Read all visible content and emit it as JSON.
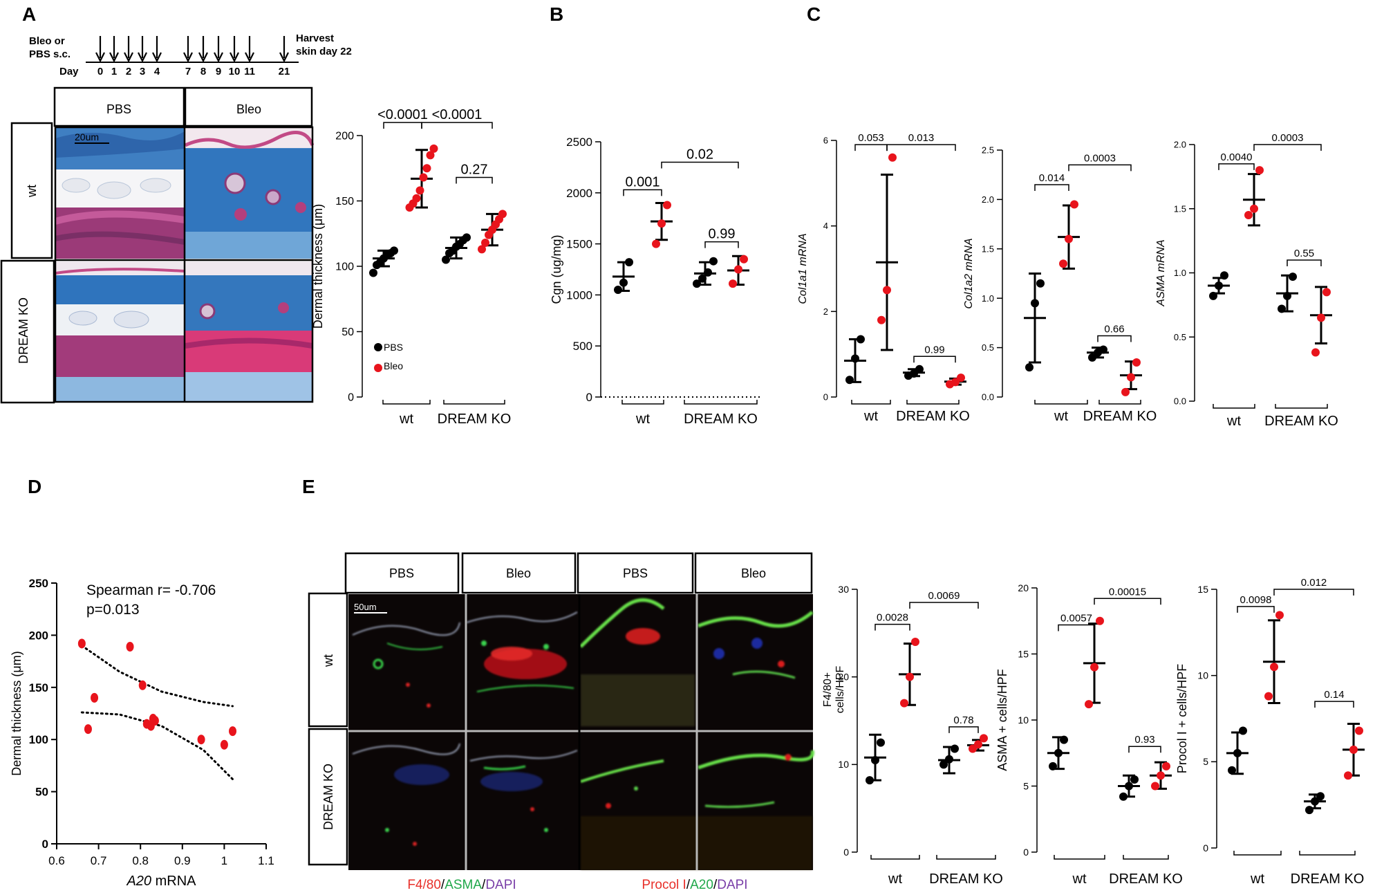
{
  "panel_letters": [
    "A",
    "B",
    "C",
    "D",
    "E"
  ],
  "timeline": {
    "treatment_label_line1": "Bleo or",
    "treatment_label_line2": "PBS s.c.",
    "day_label": "Day",
    "days": [
      "0",
      "1",
      "2",
      "3",
      "4",
      "7",
      "8",
      "9",
      "10",
      "11",
      "21"
    ],
    "harvest_label_line1": "Harvest",
    "harvest_label_line2": "skin day 22"
  },
  "histology_a": {
    "columns": [
      "PBS",
      "Bleo"
    ],
    "rows": [
      "wt",
      "DREAM KO"
    ],
    "scale_bar": "20um"
  },
  "histology_e": {
    "columns": [
      "PBS",
      "Bleo",
      "PBS",
      "Bleo"
    ],
    "rows": [
      "wt",
      "DREAM KO"
    ],
    "scale_bar": "50um",
    "stain_left": [
      "F4/80",
      "/",
      "ASMA",
      "/",
      "DAPI"
    ],
    "stain_right": [
      "Procol I",
      "/",
      "A20",
      "/",
      "DAPI"
    ],
    "stain_colors": [
      "#e8302a",
      "#000000",
      "#20a84a",
      "#000000",
      "#7a3fa8"
    ]
  },
  "colors": {
    "pbs": "#000000",
    "bleo": "#e8141c",
    "axis": "#000000"
  },
  "chart_data": [
    {
      "id": "A-dermal",
      "type": "scatter",
      "ylabel": "Dermal thickness (μm)",
      "yticks": [
        0,
        50,
        100,
        150,
        200
      ],
      "ylim": [
        0,
        200
      ],
      "groups": [
        "wt",
        "DREAM KO"
      ],
      "legend": [
        "PBS",
        "Bleo"
      ],
      "series": [
        {
          "name": "PBS",
          "group": "wt",
          "points": [
            95,
            101,
            103,
            106,
            109,
            110,
            112
          ],
          "mean": 106,
          "sd": 6
        },
        {
          "name": "Bleo",
          "group": "wt",
          "points": [
            145,
            148,
            152,
            158,
            168,
            175,
            185,
            190
          ],
          "mean": 167,
          "sd": 22
        },
        {
          "name": "PBS",
          "group": "DREAM KO",
          "points": [
            105,
            110,
            112,
            115,
            117,
            120,
            122
          ],
          "mean": 114,
          "sd": 8
        },
        {
          "name": "Bleo",
          "group": "DREAM KO",
          "points": [
            113,
            118,
            124,
            128,
            132,
            136,
            140
          ],
          "mean": 128,
          "sd": 12
        }
      ],
      "pvalues": [
        {
          "text": "<0.0001",
          "from": 0,
          "to": 1,
          "y": 210
        },
        {
          "text": "<0.0001",
          "from": 1,
          "to": 3,
          "y": 210
        },
        {
          "text": "0.27",
          "from": 2,
          "to": 3,
          "y": 168
        }
      ]
    },
    {
      "id": "B-cgn",
      "type": "scatter",
      "ylabel": "Cgn (ug/mg)",
      "yticks": [
        0,
        500,
        1000,
        1500,
        2000,
        2500
      ],
      "ylim": [
        0,
        2500
      ],
      "groups": [
        "wt",
        "DREAM KO"
      ],
      "series": [
        {
          "name": "PBS",
          "group": "wt",
          "points": [
            1050,
            1120,
            1320
          ],
          "mean": 1180,
          "sd": 140
        },
        {
          "name": "Bleo",
          "group": "wt",
          "points": [
            1500,
            1700,
            1880
          ],
          "mean": 1720,
          "sd": 180
        },
        {
          "name": "PBS",
          "group": "DREAM KO",
          "points": [
            1110,
            1160,
            1220,
            1330
          ],
          "mean": 1210,
          "sd": 110
        },
        {
          "name": "Bleo",
          "group": "DREAM KO",
          "points": [
            1110,
            1250,
            1350
          ],
          "mean": 1240,
          "sd": 140
        }
      ],
      "pvalues": [
        {
          "text": "0.001",
          "from": 0,
          "to": 1,
          "y": 2030
        },
        {
          "text": "0.02",
          "from": 1,
          "to": 3,
          "y": 2300
        },
        {
          "text": "0.99",
          "from": 2,
          "to": 3,
          "y": 1520
        }
      ]
    },
    {
      "id": "C-col1a1",
      "type": "scatter",
      "ylabel": "Col1a1 mRNA",
      "yticks": [
        0,
        2,
        4,
        6
      ],
      "ylim": [
        0,
        6
      ],
      "groups": [
        "wt",
        "DREAM KO"
      ],
      "series": [
        {
          "name": "PBS",
          "group": "wt",
          "points": [
            0.4,
            0.9,
            1.35
          ],
          "mean": 0.85,
          "sd": 0.5
        },
        {
          "name": "Bleo",
          "group": "wt",
          "points": [
            1.8,
            2.5,
            5.6
          ],
          "mean": 3.15,
          "sd": 2.05
        },
        {
          "name": "PBS",
          "group": "DREAM KO",
          "points": [
            0.5,
            0.55,
            0.65
          ],
          "mean": 0.57,
          "sd": 0.08
        },
        {
          "name": "Bleo",
          "group": "DREAM KO",
          "points": [
            0.3,
            0.35,
            0.45
          ],
          "mean": 0.36,
          "sd": 0.07
        }
      ],
      "pvalues": [
        {
          "text": "0.053",
          "from": 0,
          "to": 1,
          "y": 5.9
        },
        {
          "text": "0.013",
          "from": 1,
          "to": 3,
          "y": 5.9
        },
        {
          "text": "0.99",
          "from": 2,
          "to": 3,
          "y": 0.95
        }
      ]
    },
    {
      "id": "C-col1a2",
      "type": "scatter",
      "ylabel": "Col1a2 mRNA",
      "yticks": [
        "0.0",
        "0.5",
        "1.0",
        "1.5",
        "2.0",
        "2.5"
      ],
      "ylim": [
        0,
        2.5
      ],
      "groups": [
        "wt",
        "DREAM KO"
      ],
      "series": [
        {
          "name": "PBS",
          "group": "wt",
          "points": [
            0.3,
            0.95,
            1.15
          ],
          "mean": 0.8,
          "sd": 0.45
        },
        {
          "name": "Bleo",
          "group": "wt",
          "points": [
            1.35,
            1.6,
            1.95
          ],
          "mean": 1.62,
          "sd": 0.32
        },
        {
          "name": "PBS",
          "group": "DREAM KO",
          "points": [
            0.4,
            0.45,
            0.48
          ],
          "mean": 0.45,
          "sd": 0.05
        },
        {
          "name": "Bleo",
          "group": "DREAM KO",
          "points": [
            0.05,
            0.2,
            0.35
          ],
          "mean": 0.22,
          "sd": 0.14
        }
      ],
      "pvalues": [
        {
          "text": "0.014",
          "from": 0,
          "to": 1,
          "y": 2.15
        },
        {
          "text": "0.0003",
          "from": 1,
          "to": 3,
          "y": 2.35
        },
        {
          "text": "0.66",
          "from": 2,
          "to": 3,
          "y": 0.62
        }
      ]
    },
    {
      "id": "C-asma",
      "type": "scatter",
      "ylabel": "ASMA mRNA",
      "yticks": [
        "0.0",
        "0.5",
        "1.0",
        "1.5",
        "2.0"
      ],
      "ylim": [
        0,
        2
      ],
      "groups": [
        "wt",
        "DREAM KO"
      ],
      "series": [
        {
          "name": "PBS",
          "group": "wt",
          "points": [
            0.82,
            0.9,
            0.98
          ],
          "mean": 0.9,
          "sd": 0.06
        },
        {
          "name": "Bleo",
          "group": "wt",
          "points": [
            1.45,
            1.5,
            1.8
          ],
          "mean": 1.57,
          "sd": 0.2
        },
        {
          "name": "PBS",
          "group": "DREAM KO",
          "points": [
            0.72,
            0.82,
            0.97
          ],
          "mean": 0.84,
          "sd": 0.14
        },
        {
          "name": "Bleo",
          "group": "DREAM KO",
          "points": [
            0.38,
            0.65,
            0.85
          ],
          "mean": 0.67,
          "sd": 0.22
        }
      ],
      "pvalues": [
        {
          "text": "0.0040",
          "from": 0,
          "to": 1,
          "y": 1.85
        },
        {
          "text": "0.0003",
          "from": 1,
          "to": 3,
          "y": 2.0
        },
        {
          "text": "0.55",
          "from": 2,
          "to": 3,
          "y": 1.1
        }
      ]
    },
    {
      "id": "D-corr",
      "type": "scatter",
      "xlabel_italic": "A20",
      "xlabel_rest": " mRNA",
      "ylabel": "Dermal thickness (μm)",
      "xticks": [
        "0.6",
        "0.7",
        "0.8",
        "0.9",
        "1",
        "1.1"
      ],
      "xlim": [
        0.6,
        1.1
      ],
      "yticks": [
        0,
        50,
        100,
        150,
        200,
        250
      ],
      "ylim": [
        0,
        250
      ],
      "annotation_1": "Spearman r= -0.706",
      "annotation_2": "p=0.013",
      "points": [
        [
          0.66,
          192
        ],
        [
          0.675,
          110
        ],
        [
          0.69,
          140
        ],
        [
          0.775,
          189
        ],
        [
          0.805,
          152
        ],
        [
          0.815,
          115
        ],
        [
          0.825,
          113
        ],
        [
          0.83,
          120
        ],
        [
          0.835,
          118
        ],
        [
          0.945,
          100
        ],
        [
          1.0,
          95
        ],
        [
          1.02,
          108
        ]
      ],
      "ci_upper": [
        [
          0.66,
          190
        ],
        [
          0.75,
          165
        ],
        [
          0.85,
          146
        ],
        [
          0.95,
          136
        ],
        [
          1.02,
          132
        ]
      ],
      "ci_lower": [
        [
          0.66,
          126
        ],
        [
          0.75,
          124
        ],
        [
          0.85,
          113
        ],
        [
          0.95,
          90
        ],
        [
          1.02,
          62
        ]
      ]
    },
    {
      "id": "E-f480",
      "type": "scatter",
      "ylabel_line1": "F4/80+",
      "ylabel_line2": "cells/HPF",
      "yticks": [
        0,
        10,
        20,
        30
      ],
      "ylim": [
        0,
        30
      ],
      "groups": [
        "wt",
        "DREAM KO"
      ],
      "series": [
        {
          "name": "PBS",
          "group": "wt",
          "points": [
            8.2,
            10.5,
            12.5
          ],
          "mean": 10.8,
          "sd": 2.6
        },
        {
          "name": "Bleo",
          "group": "wt",
          "points": [
            17,
            20,
            24
          ],
          "mean": 20.3,
          "sd": 3.5
        },
        {
          "name": "PBS",
          "group": "DREAM KO",
          "points": [
            10,
            10.6,
            11.8
          ],
          "mean": 10.5,
          "sd": 1.5
        },
        {
          "name": "Bleo",
          "group": "DREAM KO",
          "points": [
            11.8,
            12.3,
            13
          ],
          "mean": 12.2,
          "sd": 0.6
        }
      ],
      "pvalues": [
        {
          "text": "0.0028",
          "from": 0,
          "to": 1,
          "y": 26
        },
        {
          "text": "0.0069",
          "from": 1,
          "to": 3,
          "y": 28.5
        },
        {
          "text": "0.78",
          "from": 2,
          "to": 3,
          "y": 14.3
        }
      ]
    },
    {
      "id": "E-asma",
      "type": "scatter",
      "ylabel": "ASMA + cells/HPF",
      "yticks": [
        0,
        5,
        10,
        15,
        20
      ],
      "ylim": [
        0,
        20
      ],
      "groups": [
        "wt",
        "DREAM KO"
      ],
      "series": [
        {
          "name": "PBS",
          "group": "wt",
          "points": [
            6.5,
            7.5,
            8.5
          ],
          "mean": 7.5,
          "sd": 1.2
        },
        {
          "name": "Bleo",
          "group": "wt",
          "points": [
            11.2,
            14,
            17.5
          ],
          "mean": 14.3,
          "sd": 3.0
        },
        {
          "name": "PBS",
          "group": "DREAM KO",
          "points": [
            4.2,
            5,
            5.5
          ],
          "mean": 5,
          "sd": 0.8
        },
        {
          "name": "Bleo",
          "group": "DREAM KO",
          "points": [
            5,
            5.8,
            6.5
          ],
          "mean": 5.8,
          "sd": 1.0
        }
      ],
      "pvalues": [
        {
          "text": "0.0057",
          "from": 0,
          "to": 1,
          "y": 17.2
        },
        {
          "text": "0.00015",
          "from": 1,
          "to": 3,
          "y": 19.2
        },
        {
          "text": "0.93",
          "from": 2,
          "to": 3,
          "y": 8.0
        }
      ]
    },
    {
      "id": "E-procol",
      "type": "scatter",
      "ylabel": "Procol I + cells/HPF",
      "yticks": [
        0,
        5,
        10,
        15
      ],
      "ylim": [
        0,
        15
      ],
      "groups": [
        "wt",
        "DREAM KO"
      ],
      "series": [
        {
          "name": "PBS",
          "group": "wt",
          "points": [
            4.5,
            5.5,
            6.8
          ],
          "mean": 5.5,
          "sd": 1.2
        },
        {
          "name": "Bleo",
          "group": "wt",
          "points": [
            8.8,
            10.5,
            13.5
          ],
          "mean": 10.8,
          "sd": 2.4
        },
        {
          "name": "PBS",
          "group": "DREAM KO",
          "points": [
            2.2,
            2.7,
            3.0
          ],
          "mean": 2.7,
          "sd": 0.4
        },
        {
          "name": "Bleo",
          "group": "DREAM KO",
          "points": [
            4.2,
            5.7,
            6.8
          ],
          "mean": 5.7,
          "sd": 1.5
        }
      ],
      "pvalues": [
        {
          "text": "0.0098",
          "from": 0,
          "to": 1,
          "y": 14.0
        },
        {
          "text": "0.012",
          "from": 1,
          "to": 3,
          "y": 15.0
        },
        {
          "text": "0.14",
          "from": 2,
          "to": 3,
          "y": 8.5
        }
      ]
    }
  ]
}
